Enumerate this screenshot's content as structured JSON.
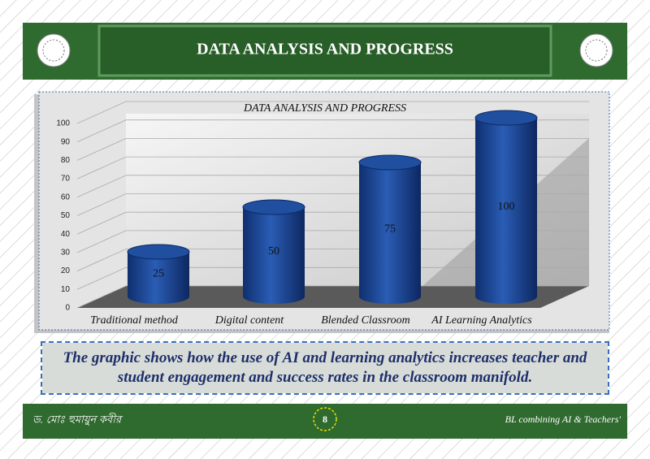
{
  "header": {
    "title": "DATA ANALYSIS AND PROGRESS"
  },
  "chart_data": {
    "type": "bar",
    "title": "DATA ANALYSIS AND PROGRESS",
    "categories": [
      "Traditional method",
      "Digital content",
      "Blended Classroom",
      "AI Learning Analytics"
    ],
    "values": [
      25,
      50,
      75,
      100
    ],
    "color": "#1f4f9e",
    "ylim": [
      0,
      100
    ],
    "yticks": [
      0,
      10,
      20,
      30,
      40,
      50,
      60,
      70,
      80,
      90,
      100
    ],
    "grid": true
  },
  "caption": "The graphic shows how the use of AI and learning analytics increases teacher and student engagement and success rates in the classroom manifold.",
  "footer": {
    "author": "ড. মোঃ হুমায়ুন কবীর",
    "page": "8",
    "note": "BL combining AI & Teachers'"
  }
}
